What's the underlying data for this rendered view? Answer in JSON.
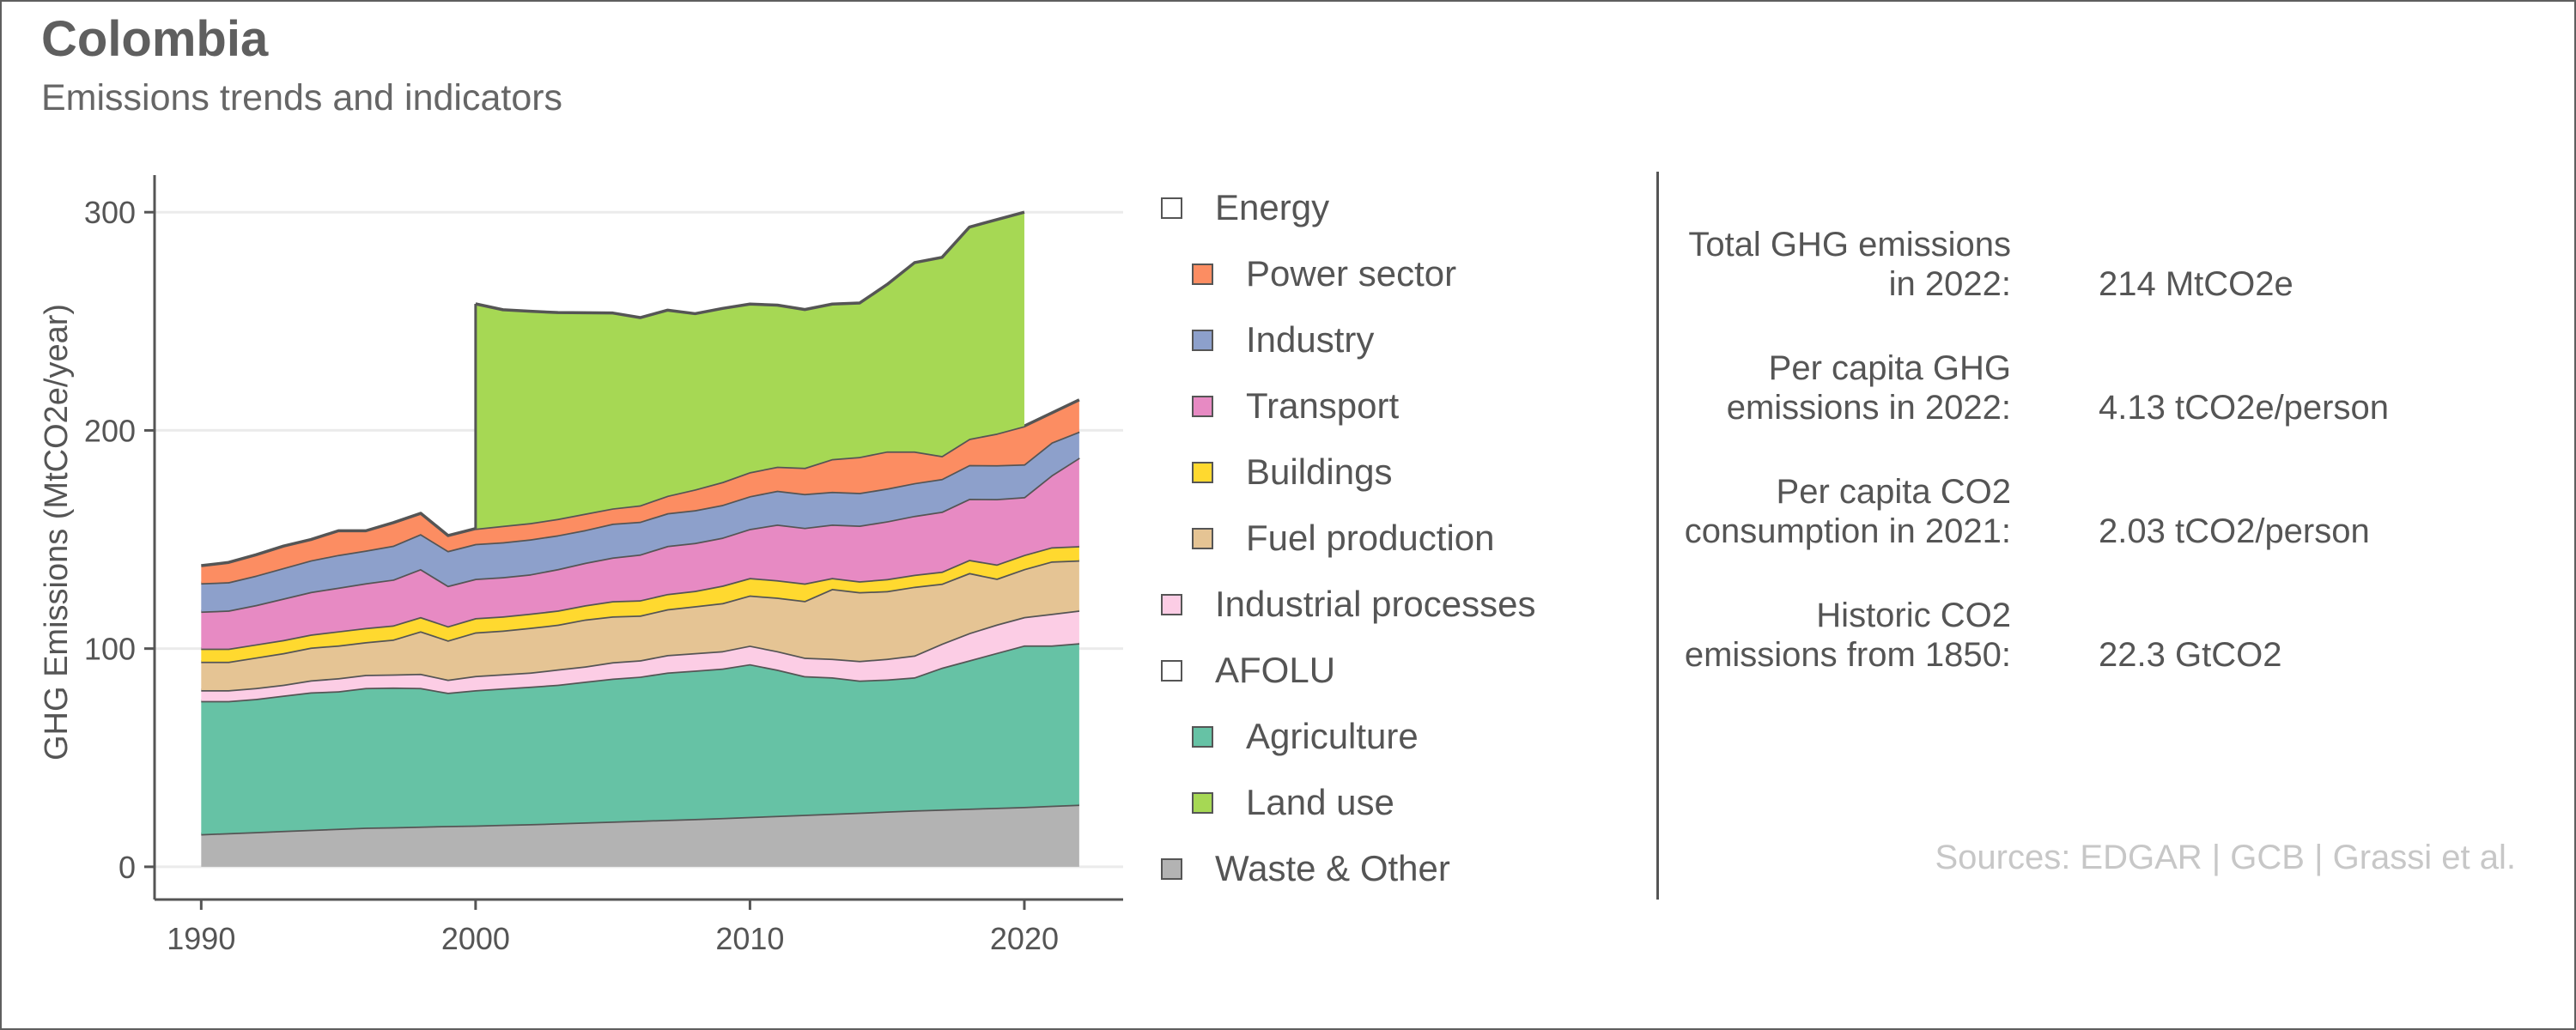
{
  "header": {
    "title": "Colombia",
    "subtitle": "Emissions trends and indicators"
  },
  "chart_data": {
    "type": "area",
    "stacked": true,
    "title": "",
    "ylabel": "GHG Emissions (MtCO2e/year)",
    "xlabel": "",
    "xlim": [
      1988.3,
      2023.6
    ],
    "ylim": [
      -15,
      317
    ],
    "xticks": [
      1990,
      2000,
      2010,
      2020
    ],
    "yticks": [
      0,
      100,
      200,
      300
    ],
    "grid": "horizontal",
    "colors": {
      "grid": "#ebebeb",
      "axis": "#555555",
      "outline": "#555555"
    },
    "series": [
      {
        "name": "Waste & Other",
        "color": "#b3b3b3",
        "x": [
          1990,
          1991,
          1992,
          1993,
          1994,
          1995,
          1996,
          1997,
          1998,
          1999,
          2000,
          2001,
          2002,
          2003,
          2004,
          2005,
          2006,
          2007,
          2008,
          2009,
          2010,
          2011,
          2012,
          2013,
          2014,
          2015,
          2016,
          2017,
          2018,
          2019,
          2020,
          2021,
          2022
        ],
        "values": [
          15,
          15.5,
          16,
          16.5,
          17,
          17.5,
          18,
          18.2,
          18.5,
          18.8,
          19,
          19.3,
          19.6,
          20,
          20.4,
          20.8,
          21.2,
          21.6,
          22,
          22.4,
          22.9,
          23.4,
          23.9,
          24.4,
          24.9,
          25.4,
          25.9,
          26.3,
          26.7,
          27.1,
          27.5,
          28,
          28.5
        ]
      },
      {
        "name": "Agriculture",
        "color": "#66c2a5",
        "x": [
          1990,
          1991,
          1992,
          1993,
          1994,
          1995,
          1996,
          1997,
          1998,
          1999,
          2000,
          2001,
          2002,
          2003,
          2004,
          2005,
          2006,
          2007,
          2008,
          2009,
          2010,
          2011,
          2012,
          2013,
          2014,
          2015,
          2016,
          2017,
          2018,
          2019,
          2020,
          2021,
          2022
        ],
        "values": [
          61,
          60.5,
          61,
          62,
          63,
          63,
          64,
          64,
          63.5,
          61,
          62,
          62.5,
          63,
          63.5,
          64.5,
          65.5,
          66,
          67.5,
          68,
          68.5,
          70,
          67,
          63.5,
          62.5,
          60.5,
          60.5,
          61,
          65,
          68,
          71,
          74,
          73.5,
          74
        ]
      },
      {
        "name": "Industrial processes",
        "color": "#fccde5",
        "x": [
          1990,
          1991,
          1992,
          1993,
          1994,
          1995,
          1996,
          1997,
          1998,
          1999,
          2000,
          2001,
          2002,
          2003,
          2004,
          2005,
          2006,
          2007,
          2008,
          2009,
          2010,
          2011,
          2012,
          2013,
          2014,
          2015,
          2016,
          2017,
          2018,
          2019,
          2020,
          2021,
          2022
        ],
        "values": [
          5,
          5,
          5,
          5,
          5.5,
          6,
          6,
          6,
          6.5,
          6,
          6.5,
          6.5,
          6.5,
          7,
          7,
          7.5,
          7.5,
          8,
          8,
          8,
          8.5,
          8.5,
          8.5,
          8.5,
          9,
          9.5,
          10,
          11,
          12.5,
          13,
          13,
          14.5,
          15
        ]
      },
      {
        "name": "Fuel production",
        "color": "#e5c494",
        "x": [
          1990,
          1991,
          1992,
          1993,
          1994,
          1995,
          1996,
          1997,
          1998,
          1999,
          2000,
          2001,
          2002,
          2003,
          2004,
          2005,
          2006,
          2007,
          2008,
          2009,
          2010,
          2011,
          2012,
          2013,
          2014,
          2015,
          2016,
          2017,
          2018,
          2019,
          2020,
          2021,
          2022
        ],
        "values": [
          13,
          13,
          14,
          14.5,
          15,
          15,
          15,
          16,
          19.5,
          18,
          20,
          20,
          20.5,
          20.5,
          21.5,
          21,
          20.5,
          21,
          21.5,
          22,
          23,
          24.5,
          26,
          32,
          31.5,
          31,
          31.5,
          27.5,
          27.5,
          21,
          22,
          24,
          23
        ]
      },
      {
        "name": "Buildings",
        "color": "#ffd92f",
        "x": [
          1990,
          1991,
          1992,
          1993,
          1994,
          1995,
          1996,
          1997,
          1998,
          1999,
          2000,
          2001,
          2002,
          2003,
          2004,
          2005,
          2006,
          2007,
          2008,
          2009,
          2010,
          2011,
          2012,
          2013,
          2014,
          2015,
          2016,
          2017,
          2018,
          2019,
          2020,
          2021,
          2022
        ],
        "values": [
          6,
          6,
          6,
          6,
          6,
          6.5,
          6.5,
          6.5,
          6.5,
          6.5,
          6.5,
          6.5,
          6.5,
          6.5,
          6.5,
          7,
          7,
          7,
          7,
          8,
          8,
          8,
          8,
          5,
          5,
          5.5,
          5.5,
          5.5,
          6,
          6.5,
          6.5,
          6.5,
          6.5
        ]
      },
      {
        "name": "Transport",
        "color": "#e78ac3",
        "x": [
          1990,
          1991,
          1992,
          1993,
          1994,
          1995,
          1996,
          1997,
          1998,
          1999,
          2000,
          2001,
          2002,
          2003,
          2004,
          2005,
          2006,
          2007,
          2008,
          2009,
          2010,
          2011,
          2012,
          2013,
          2014,
          2015,
          2016,
          2017,
          2018,
          2019,
          2020,
          2021,
          2022
        ],
        "values": [
          17,
          17.5,
          18,
          19,
          19.5,
          20,
          20.5,
          21,
          22,
          18.5,
          18,
          18,
          18,
          19,
          19.5,
          20,
          21,
          22,
          22,
          22,
          22.5,
          25.5,
          25.5,
          24.5,
          25.5,
          26.5,
          27,
          27.5,
          28,
          30,
          26.5,
          33,
          40.5
        ]
      },
      {
        "name": "Industry",
        "color": "#8da0cb",
        "x": [
          1990,
          1991,
          1992,
          1993,
          1994,
          1995,
          1996,
          1997,
          1998,
          1999,
          2000,
          2001,
          2002,
          2003,
          2004,
          2005,
          2006,
          2007,
          2008,
          2009,
          2010,
          2011,
          2012,
          2013,
          2014,
          2015,
          2016,
          2017,
          2018,
          2019,
          2020,
          2021,
          2022
        ],
        "values": [
          13,
          13,
          13.5,
          14,
          14.5,
          15,
          15,
          15.5,
          16,
          16,
          16,
          16,
          16,
          15.5,
          15,
          15.5,
          15,
          15,
          15,
          15,
          15,
          15.5,
          15.5,
          15,
          15,
          15,
          15,
          15,
          15.5,
          15.5,
          15,
          15,
          12
        ]
      },
      {
        "name": "Power sector",
        "color": "#fc8d62",
        "x": [
          1990,
          1991,
          1992,
          1993,
          1994,
          1995,
          1996,
          1997,
          1998,
          1999,
          2000,
          2001,
          2002,
          2003,
          2004,
          2005,
          2006,
          2007,
          2008,
          2009,
          2010,
          2011,
          2012,
          2013,
          2014,
          2015,
          2016,
          2017,
          2018,
          2019,
          2020,
          2021,
          2022
        ],
        "values": [
          8,
          9,
          9.5,
          10,
          9.5,
          11,
          9,
          10.5,
          9.5,
          7,
          7,
          7.5,
          7.5,
          7.5,
          7.5,
          7,
          7.5,
          8,
          9.5,
          10.5,
          11,
          11,
          12,
          15,
          16.5,
          17,
          14.5,
          10.5,
          12,
          14.5,
          17.5,
          13.5,
          14.5
        ]
      },
      {
        "name": "Land use",
        "color": "#a6d854",
        "x": [
          2000,
          2001,
          2002,
          2003,
          2004,
          2005,
          2006,
          2007,
          2008,
          2009,
          2010,
          2011,
          2012,
          2013,
          2014,
          2015,
          2016,
          2017,
          2018,
          2019,
          2020
        ],
        "values": [
          103,
          99,
          97,
          94.5,
          92,
          89.5,
          86,
          85,
          80.5,
          79.5,
          77,
          74,
          72.5,
          71,
          70.5,
          76.5,
          86.5,
          91,
          97,
          98,
          98
        ]
      }
    ]
  },
  "legend": {
    "placement": "right",
    "items": [
      {
        "label": "Energy",
        "color": "#ffffff",
        "indent": false
      },
      {
        "label": "Power sector",
        "color": "#fc8d62",
        "indent": true
      },
      {
        "label": "Industry",
        "color": "#8da0cb",
        "indent": true
      },
      {
        "label": "Transport",
        "color": "#e78ac3",
        "indent": true
      },
      {
        "label": "Buildings",
        "color": "#ffd92f",
        "indent": true
      },
      {
        "label": "Fuel production",
        "color": "#e5c494",
        "indent": true
      },
      {
        "label": "Industrial processes",
        "color": "#fccde5",
        "indent": false
      },
      {
        "label": "AFOLU",
        "color": "#ffffff",
        "indent": false
      },
      {
        "label": "Agriculture",
        "color": "#66c2a5",
        "indent": true
      },
      {
        "label": "Land use",
        "color": "#a6d854",
        "indent": true
      },
      {
        "label": "Waste & Other",
        "color": "#b3b3b3",
        "indent": false
      }
    ]
  },
  "indicators": [
    {
      "label_line1": "Total GHG emissions",
      "label_line2": "in 2022:",
      "value": "214 MtCO2e"
    },
    {
      "label_line1": "Per capita GHG",
      "label_line2": "emissions in 2022:",
      "value": "4.13 tCO2e/person"
    },
    {
      "label_line1": "Per capita CO2",
      "label_line2": "consumption in 2021:",
      "value": "2.03 tCO2/person"
    },
    {
      "label_line1": "Historic CO2",
      "label_line2": "emissions from 1850:",
      "value": "22.3 GtCO2"
    }
  ],
  "sources": "Sources: EDGAR | GCB | Grassi et al."
}
